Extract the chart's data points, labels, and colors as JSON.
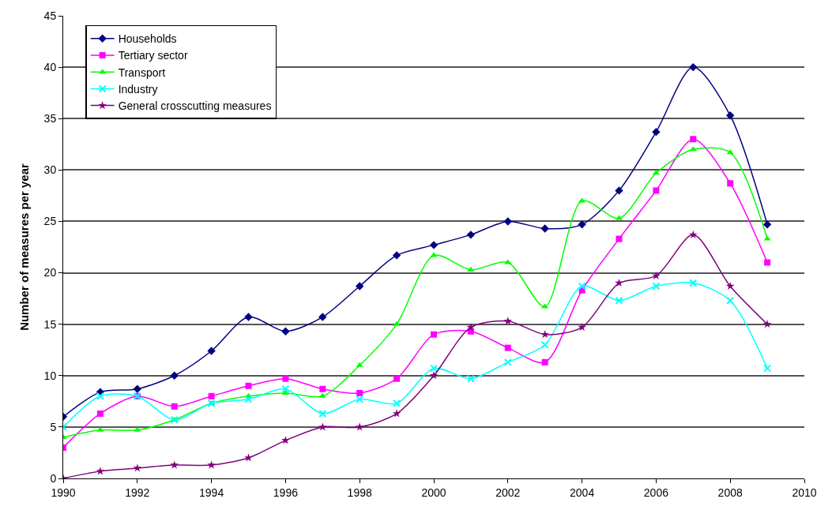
{
  "chart_data": {
    "type": "line",
    "ylabel": "Number of measures per year",
    "x": [
      1990,
      1991,
      1992,
      1993,
      1994,
      1995,
      1996,
      1997,
      1998,
      1999,
      2000,
      2001,
      2002,
      2003,
      2004,
      2005,
      2006,
      2007,
      2008,
      2009
    ],
    "series": [
      {
        "name": "Households",
        "color": "#000080",
        "marker": "diamond",
        "values": [
          6.0,
          8.4,
          8.7,
          10.0,
          12.4,
          15.7,
          14.3,
          15.7,
          18.7,
          21.7,
          22.7,
          23.7,
          25.0,
          24.3,
          24.7,
          28.0,
          33.7,
          40.0,
          35.3,
          24.7
        ]
      },
      {
        "name": "Tertiary sector",
        "color": "#ff00ff",
        "marker": "square",
        "values": [
          3.0,
          6.3,
          8.0,
          7.0,
          8.0,
          9.0,
          9.7,
          8.7,
          8.3,
          9.7,
          14.0,
          14.3,
          12.7,
          11.3,
          18.3,
          23.3,
          28.0,
          33.0,
          28.7,
          21.0
        ]
      },
      {
        "name": "Transport",
        "color": "#00ff00",
        "marker": "triangle",
        "values": [
          4.0,
          4.7,
          4.7,
          5.7,
          7.3,
          8.0,
          8.3,
          8.0,
          11.0,
          15.0,
          21.7,
          20.3,
          21.0,
          16.7,
          27.0,
          25.3,
          29.7,
          32.0,
          31.7,
          23.3
        ]
      },
      {
        "name": "Industry",
        "color": "#00ffff",
        "marker": "cross",
        "values": [
          5.0,
          8.0,
          8.0,
          5.7,
          7.3,
          7.7,
          8.7,
          6.3,
          7.7,
          7.3,
          10.7,
          9.7,
          11.3,
          13.0,
          18.7,
          17.3,
          18.7,
          19.0,
          17.3,
          10.7
        ]
      },
      {
        "name": "General crosscutting measures",
        "color": "#800080",
        "marker": "star",
        "values": [
          0,
          0.7,
          1.0,
          1.3,
          1.3,
          2.0,
          3.7,
          5.0,
          5.0,
          6.3,
          10.0,
          14.7,
          15.3,
          14.0,
          14.7,
          19.0,
          19.7,
          23.7,
          18.7,
          15.0
        ]
      }
    ],
    "xlim": [
      1990,
      2010
    ],
    "xticks": [
      1990,
      1992,
      1994,
      1996,
      1998,
      2000,
      2002,
      2004,
      2006,
      2008,
      2010
    ],
    "ylim": [
      0,
      45
    ],
    "yticks": [
      0,
      5,
      10,
      15,
      20,
      25,
      30,
      35,
      40,
      45
    ],
    "grid": "y",
    "legend": "top left",
    "line_style": "solid"
  }
}
